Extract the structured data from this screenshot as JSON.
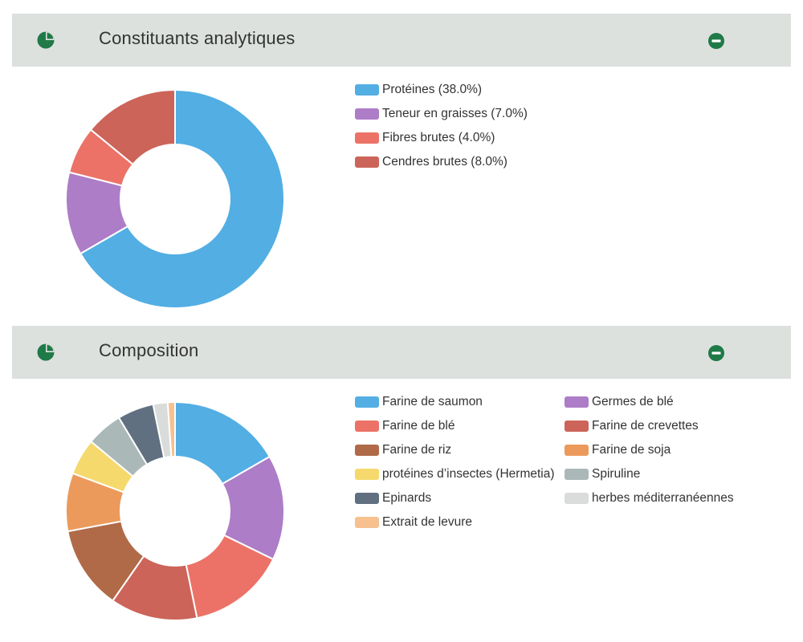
{
  "panels": [
    {
      "title": "Constituants analytiques",
      "header_icon": "pie-chart-icon",
      "collapse_icon": "minus-circle-icon"
    },
    {
      "title": "Composition",
      "header_icon": "pie-chart-icon",
      "collapse_icon": "minus-circle-icon"
    }
  ],
  "colors": {
    "header_bg": "#dde1de",
    "icon_green": "#1f7a47"
  },
  "chart_data": [
    {
      "type": "pie",
      "variant": "donut",
      "legend_position": "right",
      "categories": [
        "Protéines",
        "Teneur en graisses",
        "Fibres brutes",
        "Cendres brutes"
      ],
      "values": [
        38.0,
        7.0,
        4.0,
        8.0
      ],
      "legend_labels": [
        "Protéines (38.0%)",
        "Teneur en graisses (7.0%)",
        "Fibres brutes (4.0%)",
        "Cendres brutes (8.0%)"
      ],
      "colors": [
        "#52aee3",
        "#ad7dc7",
        "#ec7267",
        "#cc6459"
      ]
    },
    {
      "type": "pie",
      "variant": "donut",
      "legend_position": "right",
      "categories": [
        "Farine de saumon",
        "Germes de blé",
        "Farine de blé",
        "Farine de crevettes",
        "Farine de riz",
        "Farine de soja",
        "protéines d’insectes (Hermetia)",
        "Spiruline",
        "Epinards",
        "herbes méditerranéennes",
        "Extrait de levure"
      ],
      "values": [
        15.5,
        14.5,
        13.5,
        12.0,
        11.5,
        8.0,
        5.0,
        5.0,
        5.0,
        2.0,
        1.0
      ],
      "legend_labels": [
        "Farine de saumon",
        "Germes de blé",
        "Farine de blé",
        "Farine de crevettes",
        "Farine de riz",
        "Farine de soja",
        "protéines d’insectes (Hermetia)",
        "Spiruline",
        "Epinards",
        "herbes méditerranéennes",
        "Extrait de levure"
      ],
      "colors": [
        "#52aee3",
        "#ad7dc7",
        "#ec7267",
        "#cc6459",
        "#b06a48",
        "#eb9a5c",
        "#f5d96d",
        "#abb8b8",
        "#617080",
        "#dadcdc",
        "#f6c18f"
      ]
    }
  ]
}
